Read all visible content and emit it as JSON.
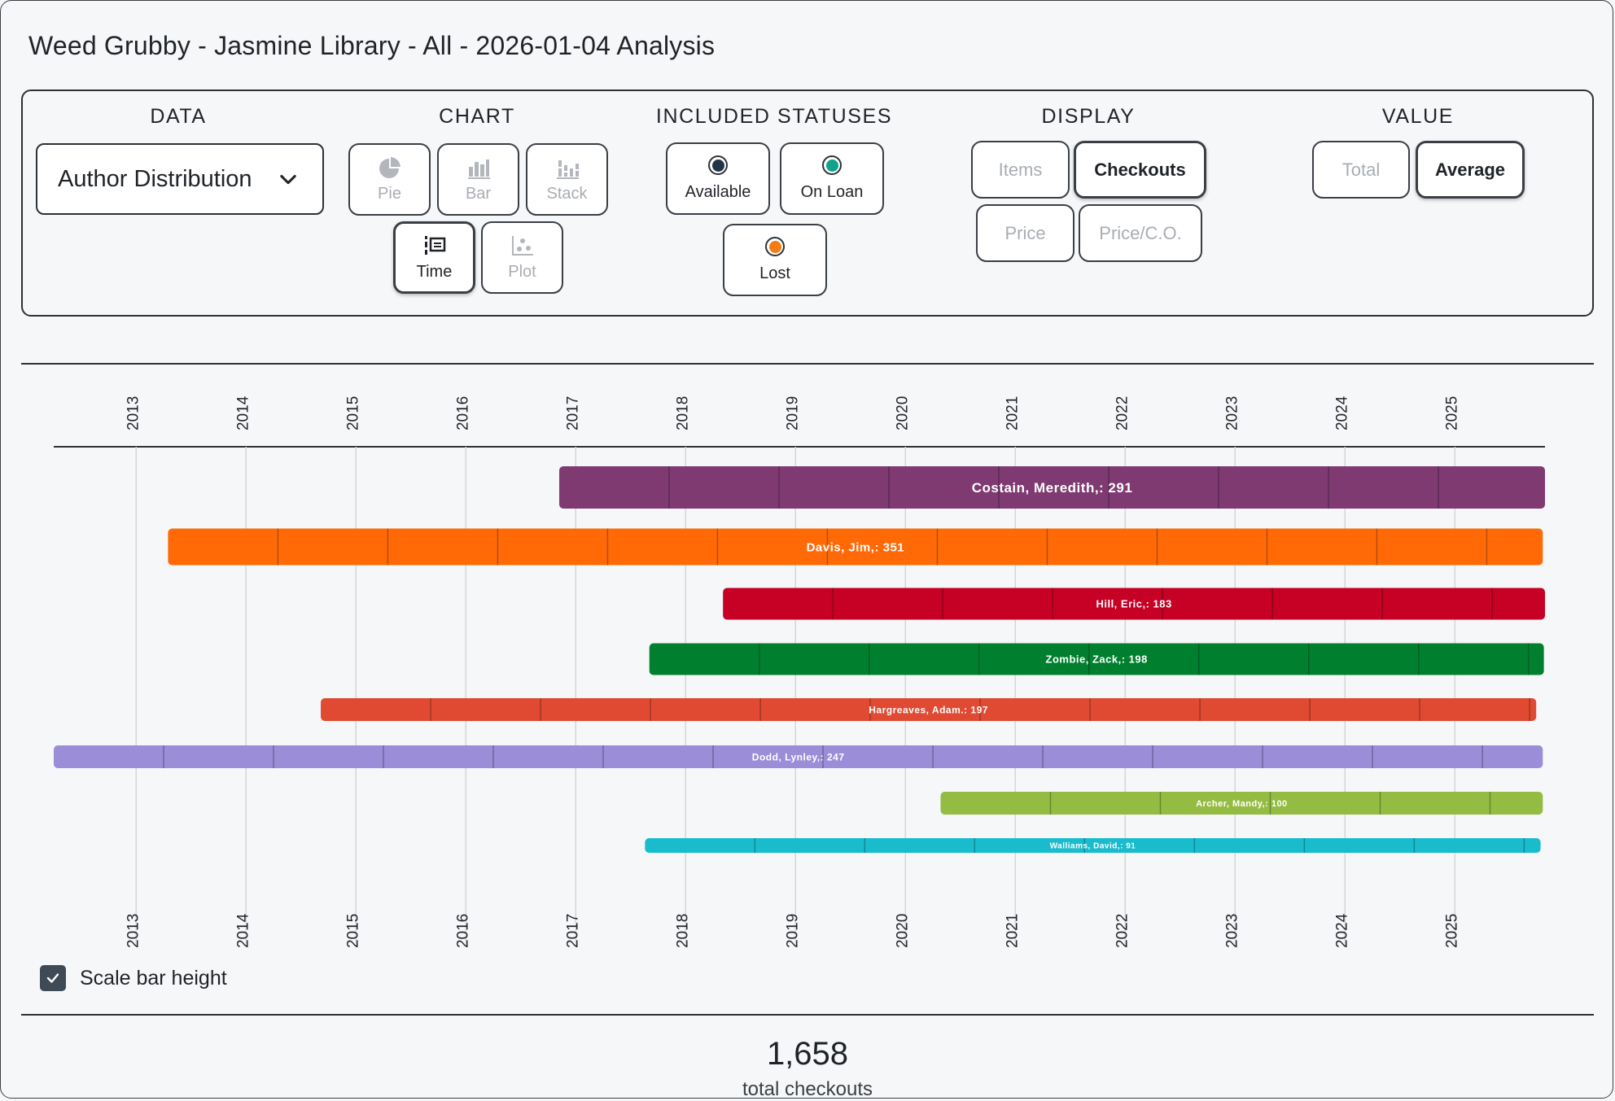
{
  "page": {
    "title": "Weed Grubby - Jasmine Library - All - 2026-01-04 Analysis"
  },
  "controls": {
    "data": {
      "title": "DATA",
      "selected": "Author Distribution"
    },
    "chart": {
      "title": "CHART",
      "buttons": [
        {
          "label": "Pie",
          "icon": "pie-chart-icon",
          "state": "disabled"
        },
        {
          "label": "Bar",
          "icon": "bar-chart-icon",
          "state": "disabled"
        },
        {
          "label": "Stack",
          "icon": "stack-chart-icon",
          "state": "disabled"
        },
        {
          "label": "Time",
          "icon": "timeline-icon",
          "state": "selected"
        },
        {
          "label": "Plot",
          "icon": "scatter-plot-icon",
          "state": "disabled"
        }
      ]
    },
    "statuses": {
      "title": "INCLUDED STATUSES",
      "items": [
        {
          "label": "Available",
          "color": "#243447"
        },
        {
          "label": "On Loan",
          "color": "#10a389"
        },
        {
          "label": "Lost",
          "color": "#f57c14"
        }
      ]
    },
    "display": {
      "title": "DISPLAY",
      "options": [
        {
          "label": "Items",
          "selected": false
        },
        {
          "label": "Checkouts",
          "selected": true
        },
        {
          "label": "Price",
          "selected": false
        },
        {
          "label": "Price/C.O.",
          "selected": false
        }
      ]
    },
    "value": {
      "title": "VALUE",
      "options": [
        {
          "label": "Total",
          "selected": false
        },
        {
          "label": "Average",
          "selected": true
        }
      ]
    }
  },
  "chart_data": {
    "type": "timeline",
    "x_ticks": [
      "2013",
      "2014",
      "2015",
      "2016",
      "2017",
      "2018",
      "2019",
      "2020",
      "2021",
      "2022",
      "2023",
      "2024",
      "2025"
    ],
    "xlim": [
      2012.25,
      2025.82
    ],
    "grid": true,
    "series": [
      {
        "label": "Costain, Meredith,: 291",
        "start": 2016.85,
        "end": 2025.82,
        "color": "#7f3a72"
      },
      {
        "label": "Davis, Jim,: 351",
        "start": 2013.29,
        "end": 2025.8,
        "color": "#ff6a06"
      },
      {
        "label": "Hill, Eric,: 183",
        "start": 2018.34,
        "end": 2025.82,
        "color": "#c70025"
      },
      {
        "label": "Zombie, Zack,: 198",
        "start": 2017.67,
        "end": 2025.81,
        "color": "#00802f"
      },
      {
        "label": "Hargreaves, Adam.: 197",
        "start": 2014.68,
        "end": 2025.74,
        "color": "#e04a32"
      },
      {
        "label": "Dodd, Lynley,: 247",
        "start": 2012.25,
        "end": 2025.8,
        "color": "#9b8dd8"
      },
      {
        "label": "Archer, Mandy,: 100",
        "start": 2020.32,
        "end": 2025.8,
        "color": "#94bc42"
      },
      {
        "label": "Walliams, David,: 91",
        "start": 2017.63,
        "end": 2025.78,
        "color": "#19bccd"
      }
    ]
  },
  "options": {
    "scale_bar_height": {
      "label": "Scale bar height",
      "checked": true
    }
  },
  "summary": {
    "total_value": "1,658",
    "total_label": "total checkouts"
  }
}
